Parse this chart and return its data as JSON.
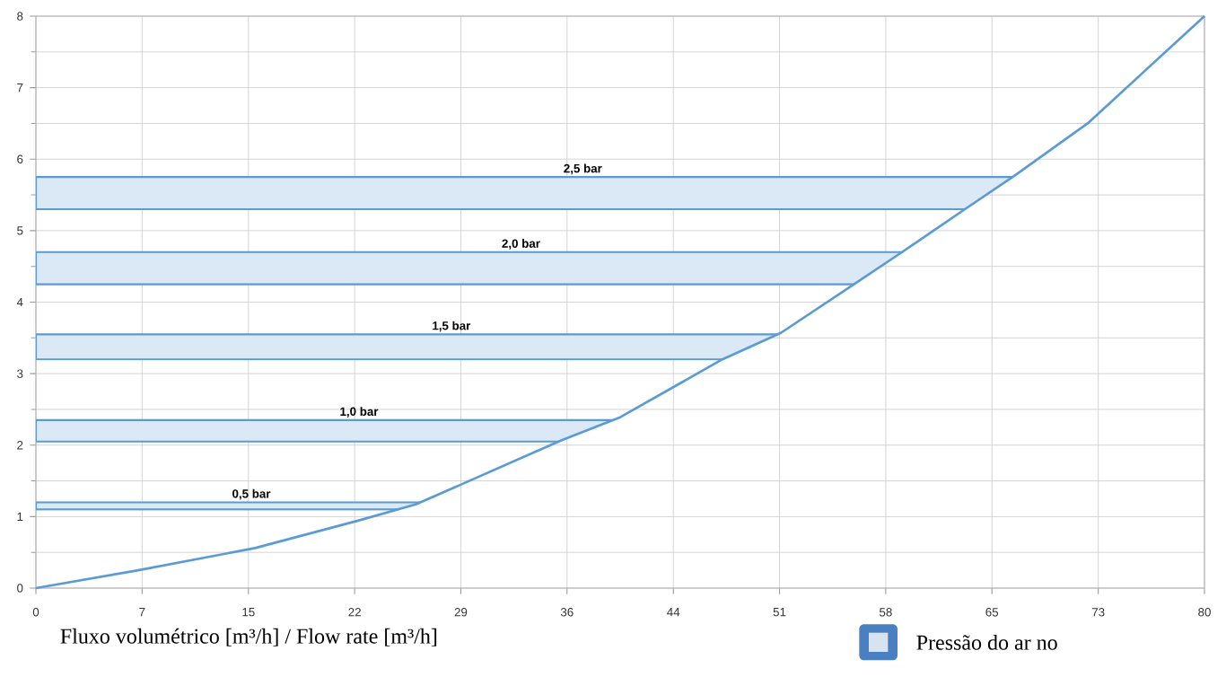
{
  "chart_data": {
    "type": "line",
    "xlabel": "Fluxo volumétrico [m³/h] / Flow rate [m³/h]",
    "legend_title": "Pressão do ar no",
    "x": [
      0,
      7,
      15,
      22,
      26,
      36,
      40,
      47,
      51,
      56,
      59.3,
      63.6,
      67,
      72,
      80
    ],
    "series": [
      {
        "color": "#5b9bd5",
        "values": [
          0,
          0.25,
          0.56,
          0.94,
          1.17,
          2.07,
          2.39,
          3.2,
          3.57,
          4.25,
          4.7,
          5.3,
          5.77,
          6.5,
          8
        ]
      }
    ],
    "bands": [
      {
        "axis": "y",
        "from": 1.1,
        "to": 1.2,
        "label": "0,5 bar",
        "color": "#dbe9f6"
      },
      {
        "axis": "y",
        "from": 2.05,
        "to": 2.35,
        "label": "1,0 bar",
        "color": "#dbe9f6"
      },
      {
        "axis": "y",
        "from": 3.2,
        "to": 3.55,
        "label": "1,5 bar",
        "color": "#dbe9f6"
      },
      {
        "axis": "y",
        "from": 4.25,
        "to": 4.7,
        "label": "2,0 bar",
        "color": "#dbe9f6"
      },
      {
        "axis": "y",
        "from": 5.3,
        "to": 5.75,
        "label": "2,5 bar",
        "color": "#dbe9f6"
      }
    ],
    "xlim": [
      0,
      80
    ],
    "ylim": [
      0,
      8
    ],
    "xticks": [
      0,
      {
        "value": 7.27,
        "label": "7"
      },
      {
        "value": 14.55,
        "label": "15"
      },
      {
        "value": 21.82,
        "label": "22"
      },
      {
        "value": 29.09,
        "label": "29"
      },
      {
        "value": 36.36,
        "label": "36"
      },
      {
        "value": 43.64,
        "label": "44"
      },
      {
        "value": 50.91,
        "label": "51"
      },
      {
        "value": 58.18,
        "label": "58"
      },
      {
        "value": 65.45,
        "label": "65"
      },
      {
        "value": 72.73,
        "label": "73"
      },
      80
    ],
    "yticks": [
      0,
      1,
      2,
      3,
      4,
      5,
      6,
      7,
      8
    ],
    "grid": true,
    "marker": "none",
    "line_style": "solid"
  }
}
